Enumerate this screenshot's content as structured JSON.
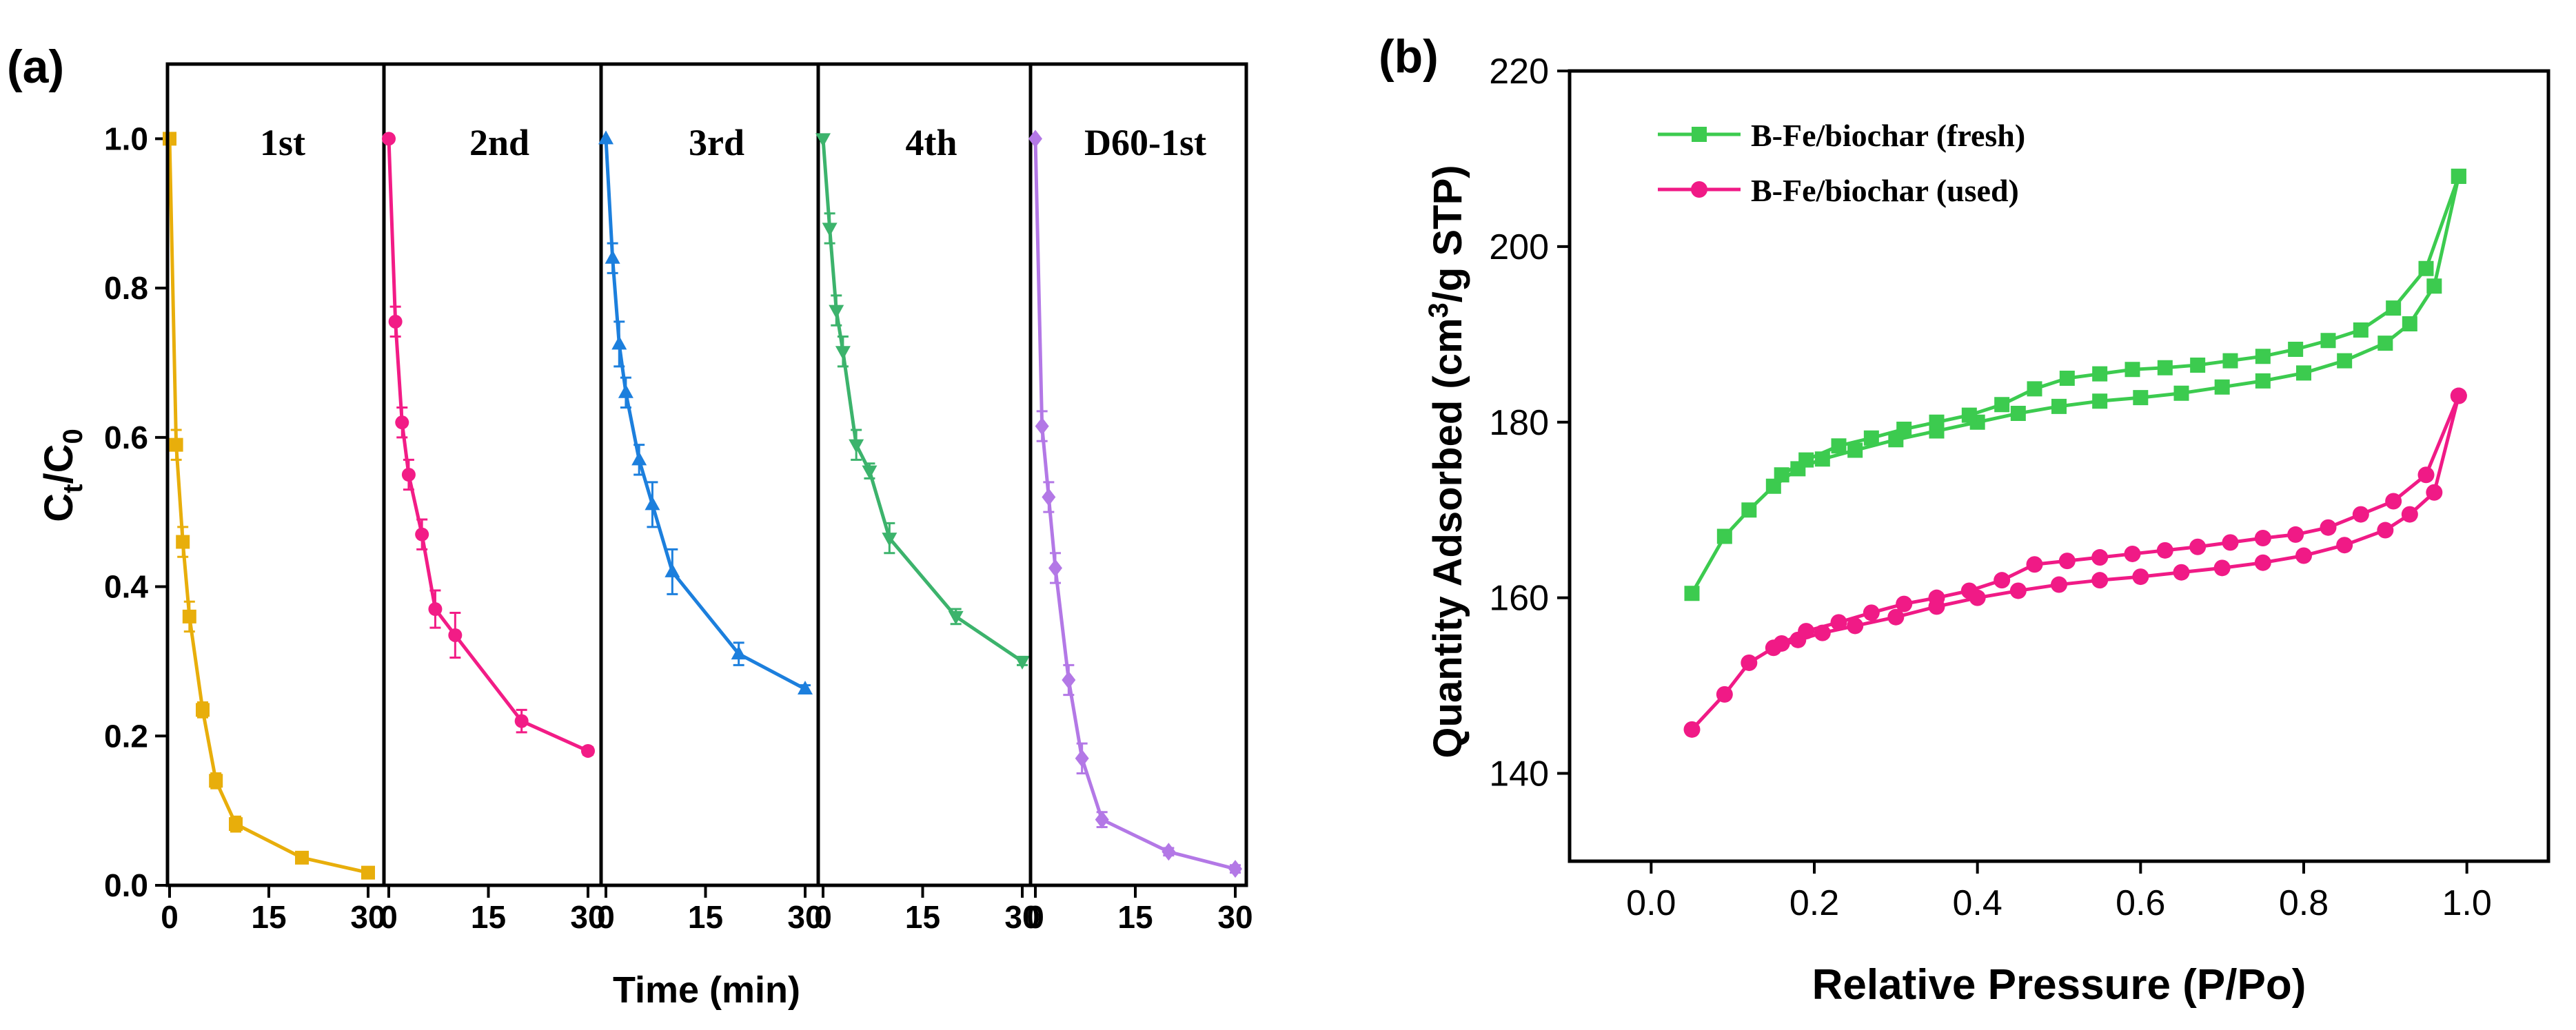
{
  "panel_a": {
    "label": "(a)",
    "xlabel": "Time (min)",
    "ylabel_base": "C",
    "ylabel_sub1": "t",
    "ylabel_sep": "/C",
    "ylabel_sub2": "0"
  },
  "panel_b": {
    "label": "(b)",
    "xlabel": "Relative Pressure (P/Po)",
    "ylabel_pre": "Quantity Adsorbed (cm",
    "ylabel_sup": "3",
    "ylabel_post": "/g STP)"
  },
  "chart_data": [
    {
      "type": "line",
      "title": "(a)",
      "xlabel": "Time (min)",
      "ylabel": "Ct/C0",
      "ylim": [
        0,
        1.1
      ],
      "yticks": [
        0.0,
        0.2,
        0.4,
        0.6,
        0.8,
        1.0
      ],
      "xticks": [
        0,
        15,
        30
      ],
      "panels": [
        {
          "name": "1st",
          "color": "#E8AE0B",
          "marker": "square",
          "x": [
            0,
            1,
            2,
            3,
            5,
            7,
            10,
            20,
            30
          ],
          "y": [
            1.0,
            0.59,
            0.46,
            0.36,
            0.235,
            0.14,
            0.082,
            0.037,
            0.017
          ],
          "err": [
            0,
            0.02,
            0.02,
            0.02,
            0.01,
            0.01,
            0.01,
            0.005,
            0.005
          ]
        },
        {
          "name": "2nd",
          "color": "#F21C86",
          "marker": "circle",
          "x": [
            0,
            1,
            2,
            3,
            5,
            7,
            10,
            20,
            30
          ],
          "y": [
            1.0,
            0.755,
            0.62,
            0.55,
            0.47,
            0.37,
            0.335,
            0.22,
            0.18
          ],
          "err": [
            0,
            0.02,
            0.02,
            0.02,
            0.02,
            0.025,
            0.03,
            0.015,
            0.005
          ]
        },
        {
          "name": "3rd",
          "color": "#1C7FDD",
          "marker": "triangle",
          "x": [
            0,
            1,
            2,
            3,
            5,
            7,
            10,
            20,
            30
          ],
          "y": [
            1.0,
            0.84,
            0.725,
            0.66,
            0.57,
            0.51,
            0.42,
            0.31,
            0.263
          ],
          "err": [
            0,
            0.02,
            0.03,
            0.02,
            0.02,
            0.03,
            0.03,
            0.015,
            0.005
          ]
        },
        {
          "name": "4th",
          "color": "#3CB36C",
          "marker": "triangle-down",
          "x": [
            0,
            1,
            2,
            3,
            5,
            7,
            10,
            20,
            30
          ],
          "y": [
            1.0,
            0.88,
            0.77,
            0.715,
            0.59,
            0.555,
            0.465,
            0.36,
            0.3
          ],
          "err": [
            0,
            0.02,
            0.02,
            0.02,
            0.02,
            0.01,
            0.02,
            0.01,
            0.005
          ]
        },
        {
          "name": "D60-1st",
          "color": "#B378E6",
          "marker": "diamond",
          "x": [
            0,
            1,
            2,
            3,
            5,
            7,
            10,
            20,
            30
          ],
          "y": [
            1.0,
            0.615,
            0.52,
            0.425,
            0.275,
            0.17,
            0.088,
            0.045,
            0.022
          ],
          "err": [
            0,
            0.02,
            0.02,
            0.02,
            0.02,
            0.02,
            0.01,
            0.005,
            0.005
          ]
        }
      ]
    },
    {
      "type": "line",
      "title": "(b)",
      "xlabel": "Relative Pressure (P/Po)",
      "ylabel": "Quantity Adsorbed (cm3/g STP)",
      "xlim": [
        -0.1,
        1.1
      ],
      "ylim": [
        130,
        220
      ],
      "xticks": [
        "0.0",
        "0.2",
        "0.4",
        "0.6",
        "0.8",
        "1.0"
      ],
      "yticks": [
        "140",
        "160",
        "180",
        "200",
        "220"
      ],
      "legend_position": "top-left",
      "series": [
        {
          "name": "B-Fe/biochar (fresh)",
          "color": "#3CCB4F",
          "marker": "square",
          "adsorption": {
            "x": [
              0.05,
              0.09,
              0.12,
              0.15,
              0.18,
              0.21,
              0.25,
              0.3,
              0.35,
              0.4,
              0.45,
              0.5,
              0.55,
              0.6,
              0.65,
              0.7,
              0.75,
              0.8,
              0.85,
              0.9,
              0.93,
              0.96,
              0.99
            ],
            "y": [
              160.5,
              167,
              170,
              172.7,
              174.7,
              175.8,
              176.8,
              178,
              179,
              180,
              181,
              181.8,
              182.4,
              182.8,
              183.3,
              184,
              184.7,
              185.6,
              187,
              189,
              191.2,
              195.5,
              208
            ]
          },
          "desorption": {
            "x": [
              0.99,
              0.95,
              0.91,
              0.87,
              0.83,
              0.79,
              0.75,
              0.71,
              0.67,
              0.63,
              0.59,
              0.55,
              0.51,
              0.47,
              0.43,
              0.39,
              0.35,
              0.31,
              0.27,
              0.23,
              0.19,
              0.16
            ],
            "y": [
              208,
              197.5,
              193,
              190.5,
              189.3,
              188.3,
              187.5,
              187,
              186.5,
              186.2,
              186,
              185.5,
              185,
              183.8,
              182,
              180.8,
              180,
              179.2,
              178.2,
              177.3,
              175.7,
              174
            ]
          }
        },
        {
          "name": "B-Fe/biochar (used)",
          "color": "#F01A86",
          "marker": "circle",
          "adsorption": {
            "x": [
              0.05,
              0.09,
              0.12,
              0.15,
              0.18,
              0.21,
              0.25,
              0.3,
              0.35,
              0.4,
              0.45,
              0.5,
              0.55,
              0.6,
              0.65,
              0.7,
              0.75,
              0.8,
              0.85,
              0.9,
              0.93,
              0.96,
              0.99
            ],
            "y": [
              145,
              149,
              152.6,
              154.3,
              155.2,
              156,
              156.8,
              157.8,
              159,
              160,
              160.8,
              161.5,
              162,
              162.4,
              162.9,
              163.4,
              164,
              164.8,
              166,
              167.7,
              169.5,
              172,
              183
            ]
          },
          "desorption": {
            "x": [
              0.99,
              0.95,
              0.91,
              0.87,
              0.83,
              0.79,
              0.75,
              0.71,
              0.67,
              0.63,
              0.59,
              0.55,
              0.51,
              0.47,
              0.43,
              0.39,
              0.35,
              0.31,
              0.27,
              0.23,
              0.19,
              0.16
            ],
            "y": [
              183,
              174,
              171,
              169.5,
              168,
              167.2,
              166.8,
              166.3,
              165.8,
              165.4,
              165,
              164.6,
              164.2,
              163.8,
              162,
              160.8,
              160,
              159.3,
              158.3,
              157.2,
              156.2,
              154.8
            ]
          }
        }
      ]
    }
  ]
}
